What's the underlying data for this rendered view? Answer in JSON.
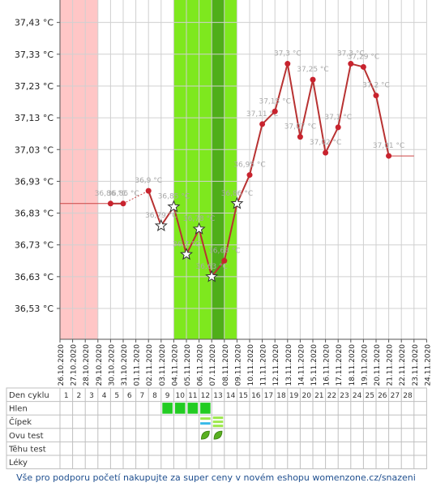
{
  "chart_data": {
    "type": "line",
    "y_ticks": [
      36.53,
      36.63,
      36.73,
      36.83,
      36.93,
      37.03,
      37.13,
      37.23,
      37.33,
      37.43
    ],
    "y_tick_labels": [
      "36,53 °C",
      "36,63 °C",
      "36,73 °C",
      "36,83 °C",
      "36,93 °C",
      "37,03 °C",
      "37,13 °C",
      "37,23 °C",
      "37,33 °C",
      "37,43 °C"
    ],
    "ylim": [
      36.43,
      37.47
    ],
    "dates": [
      "26.10.2020",
      "27.10.2020",
      "28.10.2020",
      "29.10.2020",
      "30.10.2020",
      "31.10.2020",
      "01.11.2020",
      "02.11.2020",
      "03.11.2020",
      "04.11.2020",
      "05.11.2020",
      "06.11.2020",
      "07.11.2020",
      "08.11.2020",
      "09.11.2020",
      "10.11.2020",
      "11.11.2020",
      "12.11.2020",
      "13.11.2020",
      "14.11.2020",
      "15.11.2020",
      "16.11.2020",
      "17.11.2020",
      "18.11.2020",
      "19.11.2020",
      "20.11.2020",
      "21.11.2020",
      "22.11.2020",
      "23.11.2020",
      "24.11.2020"
    ],
    "grid": true,
    "bands": [
      {
        "from": 0,
        "to": 3,
        "color": "#ffc6c6"
      },
      {
        "from": 9,
        "to": 14,
        "color": "#7ee81e"
      },
      {
        "from": 12,
        "to": 13,
        "color": "#4fae19"
      }
    ],
    "series": [
      {
        "values": [
          null,
          null,
          null,
          null,
          36.86,
          36.86,
          null,
          36.9,
          36.79,
          36.85,
          36.7,
          36.78,
          36.63,
          36.68,
          36.86,
          36.95,
          37.11,
          37.15,
          37.3,
          37.07,
          37.25,
          37.02,
          37.1,
          37.3,
          37.29,
          37.2,
          37.01,
          null,
          null,
          null
        ],
        "labels": [
          null,
          null,
          null,
          null,
          "36,86 °C",
          "36,86 °C",
          null,
          "36,9 °C",
          "36,79 °C",
          "36,85 °C",
          "36,7 °C",
          "36,78 °C",
          "36,63 °C",
          "36,68 °C",
          "36,86 °C",
          "36,95 °C",
          "37,11 °C",
          "37,15 °C",
          "37,3 °C",
          "37,07 °C",
          "37,25 °C",
          "37,02 °C",
          "37,1 °C",
          "37,3 °C",
          "37,29 °C",
          "37,2 °C",
          "37,01 °C",
          null,
          null,
          null
        ],
        "markers": [
          null,
          null,
          null,
          null,
          "dot",
          "dot",
          null,
          "dot",
          "star",
          "star",
          "star",
          "star",
          "star",
          "dot",
          "star",
          "dot",
          "dot",
          "dot",
          "dot",
          "dot",
          "dot",
          "dot",
          "dot",
          "dot",
          "dot",
          "dot",
          "dot",
          null,
          null,
          null
        ],
        "line_color": "#b83232",
        "marker_color": "#c8232e",
        "label_color": "#a8a8a8"
      }
    ],
    "baseline_left": {
      "from": 0,
      "to": 4,
      "value": 36.86
    },
    "baseline_right": {
      "from": 26,
      "to": 28,
      "value": 37.01
    }
  },
  "table": {
    "row_labels": [
      "Den cyklu",
      "Hlen",
      "Čípek",
      "Ovu test",
      "Těhu test",
      "Léky"
    ],
    "cycle_days": [
      "1",
      "2",
      "3",
      "4",
      "5",
      "6",
      "7",
      "8",
      "9",
      "10",
      "11",
      "12",
      "13",
      "14",
      "15",
      "16",
      "17",
      "18",
      "19",
      "20",
      "21",
      "22",
      "23",
      "24",
      "25",
      "26",
      "27",
      "28"
    ],
    "hlen_days": [
      9,
      10,
      11,
      12
    ],
    "cipek_days": [
      12,
      13
    ],
    "ovu_days": [
      12,
      13
    ],
    "colors": {
      "hlen": "#22cc22",
      "cipek_blue": "#35b9e8",
      "cipek_green": "#9be84a",
      "ovu_leaf": "#58b020"
    }
  },
  "footer": "Vše pro podporu početí nakupujte za super ceny v novém eshopu womenzone.cz/snazeni"
}
